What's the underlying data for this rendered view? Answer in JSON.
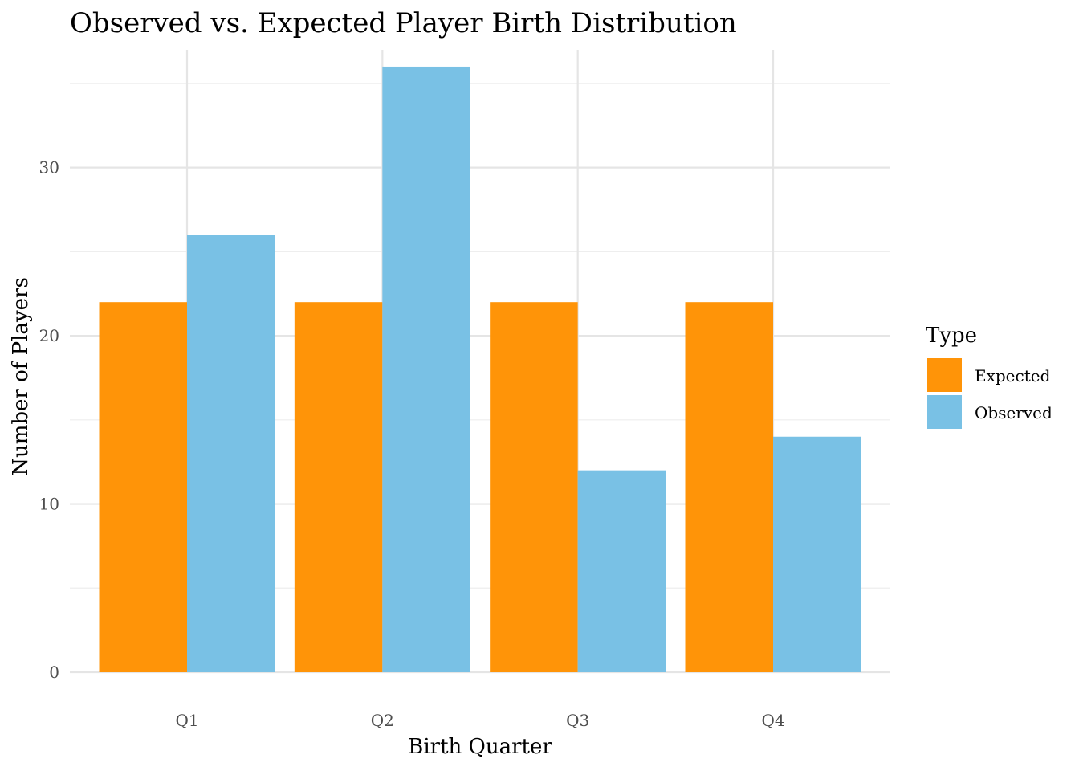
{
  "chart_data": {
    "type": "bar",
    "title": "Observed vs. Expected Player Birth Distribution",
    "xlabel": "Birth Quarter",
    "ylabel": "Number of Players",
    "categories": [
      "Q1",
      "Q2",
      "Q3",
      "Q4"
    ],
    "series": [
      {
        "name": "Expected",
        "values": [
          22,
          22,
          22,
          22
        ],
        "color": "#FF9408"
      },
      {
        "name": "Observed",
        "values": [
          26,
          36,
          12,
          14
        ],
        "color": "#79C1E5"
      }
    ],
    "ylim": [
      0,
      37
    ],
    "yticks": [
      "0",
      "10",
      "20",
      "30"
    ],
    "grid": true,
    "legend": {
      "title": "Type",
      "placement": "right"
    }
  }
}
